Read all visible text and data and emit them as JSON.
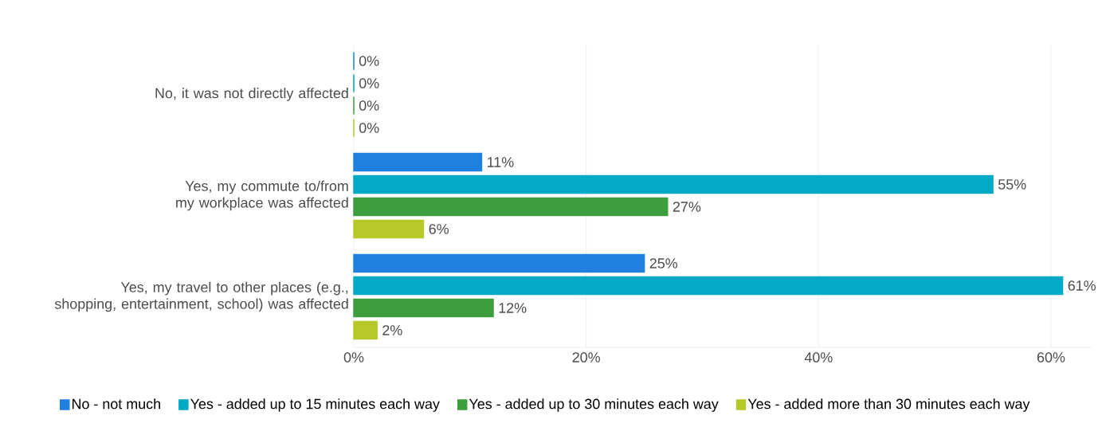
{
  "chart_data": {
    "type": "bar",
    "orientation": "horizontal",
    "categories": [
      "No, it was not directly affected",
      "Yes, my commute to/from my workplace was affected",
      "Yes, my travel to other places (e.g., shopping, entertainment, school) was affected"
    ],
    "series": [
      {
        "name": "No - not much",
        "color": "#1f80e0",
        "values": [
          0,
          11,
          25
        ],
        "value_labels": [
          "0%",
          "11%",
          "25%"
        ]
      },
      {
        "name": "Yes - added up to 15 minutes each way",
        "color": "#00a9c5",
        "values": [
          0,
          55,
          61
        ],
        "value_labels": [
          "0%",
          "55%",
          "61%"
        ]
      },
      {
        "name": "Yes - added up to 30 minutes each way",
        "color": "#3c9e3c",
        "values": [
          0,
          27,
          12
        ],
        "value_labels": [
          "0%",
          "27%",
          "12%"
        ]
      },
      {
        "name": "Yes - added more than 30 minutes each way",
        "color": "#b6c928",
        "values": [
          0,
          6,
          2
        ],
        "value_labels": [
          "0%",
          "6%",
          "2%"
        ]
      }
    ],
    "xlim": [
      0,
      63.5
    ],
    "xticks": [
      {
        "value": 0,
        "label": "0%"
      },
      {
        "value": 20,
        "label": "20%"
      },
      {
        "value": 40,
        "label": "40%"
      },
      {
        "value": 60,
        "label": "60%"
      }
    ],
    "grid": "x",
    "legend": "bottom"
  }
}
